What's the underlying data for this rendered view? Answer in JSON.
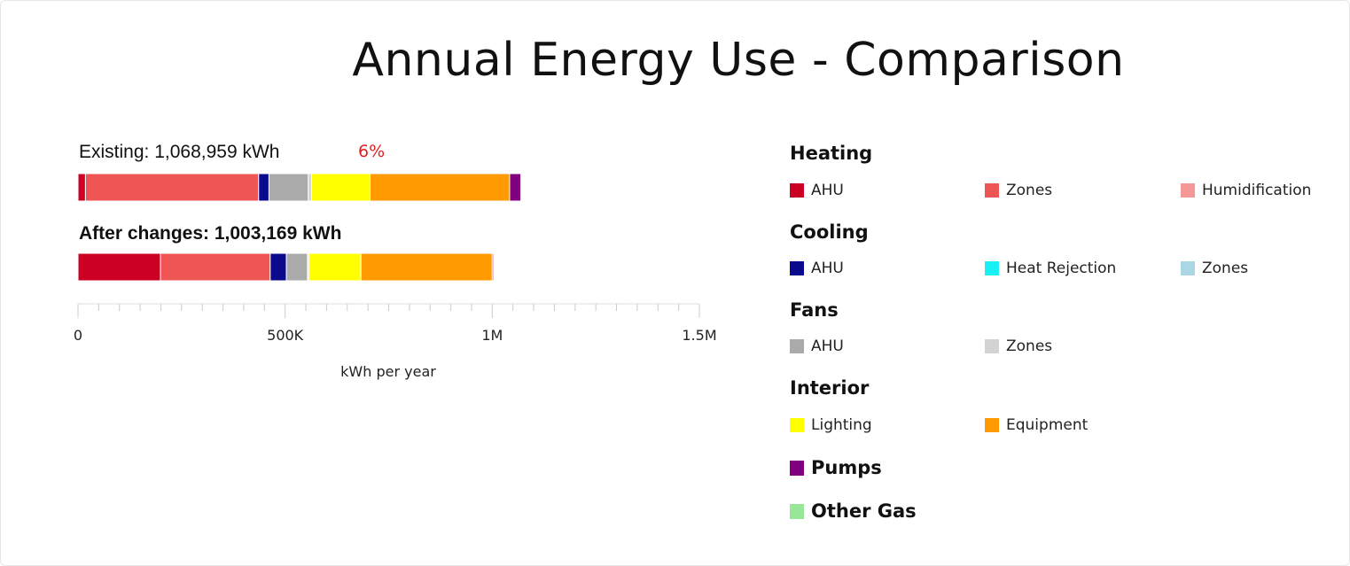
{
  "title": "Annual Energy Use - Comparison",
  "chart_data": {
    "type": "bar",
    "orientation": "horizontal",
    "stacked": true,
    "xlabel": "kWh per year",
    "xlim": [
      0,
      1500000
    ],
    "ticks": [
      {
        "value": 0,
        "label": "0"
      },
      {
        "value": 500000,
        "label": "500K"
      },
      {
        "value": 1000000,
        "label": "1M"
      },
      {
        "value": 1500000,
        "label": "1.5M"
      }
    ],
    "change_label": "6%",
    "bars": [
      {
        "label": "Existing: 1,068,959 kWh",
        "bold": false,
        "segments": [
          {
            "group": "Heating",
            "name": "AHU",
            "value": 18000
          },
          {
            "group": "Heating",
            "name": "Zones",
            "value": 418000
          },
          {
            "group": "Cooling",
            "name": "AHU",
            "value": 25000
          },
          {
            "group": "Fans",
            "name": "AHU",
            "value": 95000
          },
          {
            "group": "Fans",
            "name": "Zones",
            "value": 8000
          },
          {
            "group": "Interior",
            "name": "Lighting",
            "value": 141000
          },
          {
            "group": "Interior",
            "name": "Equipment",
            "value": 337000
          },
          {
            "group": "Pumps",
            "name": "Pumps",
            "value": 27000
          }
        ]
      },
      {
        "label": "After changes: 1,003,169 kWh",
        "bold": true,
        "segments": [
          {
            "group": "Heating",
            "name": "AHU",
            "value": 199000
          },
          {
            "group": "Heating",
            "name": "Zones",
            "value": 265000
          },
          {
            "group": "Cooling",
            "name": "AHU",
            "value": 39000
          },
          {
            "group": "Fans",
            "name": "AHU",
            "value": 51000
          },
          {
            "group": "Fans",
            "name": "Zones",
            "value": 3000
          },
          {
            "group": "Interior",
            "name": "Lighting",
            "value": 126000
          },
          {
            "group": "Interior",
            "name": "Equipment",
            "value": 317000
          },
          {
            "group": "Pumps",
            "name": "Pumps",
            "value": 3000
          }
        ]
      }
    ],
    "colors": {
      "Heating.AHU": "#cc0022",
      "Heating.Zones": "#ef5555",
      "Heating.Humidification": "#f59797",
      "Cooling.AHU": "#0a0a8c",
      "Cooling.Heat Rejection": "#19f0f5",
      "Cooling.Zones": "#aad7e3",
      "Fans.AHU": "#aaaaaa",
      "Fans.Zones": "#d3d3d3",
      "Interior.Lighting": "#ffff00",
      "Interior.Equipment": "#ff9a00",
      "Pumps.Pumps": "#800080",
      "Other Gas.Other Gas": "#98e698"
    },
    "legend": [
      {
        "group": "Heating",
        "items": [
          {
            "name": "AHU",
            "color": "#cc0022"
          },
          {
            "name": "Zones",
            "color": "#ef5555"
          },
          {
            "name": "Humidification",
            "color": "#f59797"
          }
        ]
      },
      {
        "group": "Cooling",
        "items": [
          {
            "name": "AHU",
            "color": "#0a0a8c"
          },
          {
            "name": "Heat Rejection",
            "color": "#19f0f5"
          },
          {
            "name": "Zones",
            "color": "#aad7e3"
          }
        ]
      },
      {
        "group": "Fans",
        "items": [
          {
            "name": "AHU",
            "color": "#aaaaaa"
          },
          {
            "name": "Zones",
            "color": "#d3d3d3"
          }
        ]
      },
      {
        "group": "Interior",
        "items": [
          {
            "name": "Lighting",
            "color": "#ffff00"
          },
          {
            "name": "Equipment",
            "color": "#ff9a00"
          }
        ]
      }
    ],
    "legend_major": [
      {
        "name": "Pumps",
        "color": "#800080"
      },
      {
        "name": "Other Gas",
        "color": "#98e698"
      }
    ]
  }
}
